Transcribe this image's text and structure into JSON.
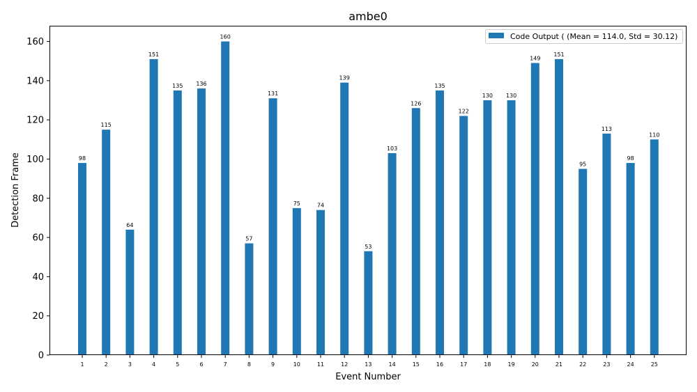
{
  "chart_data": {
    "type": "bar",
    "title": "ambe0",
    "xlabel": "Event Number",
    "ylabel": "Detection Frame",
    "categories": [
      "1",
      "2",
      "3",
      "4",
      "5",
      "6",
      "7",
      "8",
      "9",
      "10",
      "11",
      "12",
      "13",
      "14",
      "15",
      "16",
      "17",
      "18",
      "19",
      "20",
      "21",
      "22",
      "23",
      "24",
      "25"
    ],
    "series": [
      {
        "name": "Code Output ( (Mean = 114.0, Std = 30.12)",
        "color": "#1f77b4",
        "values": [
          98,
          115,
          64,
          151,
          135,
          136,
          160,
          57,
          131,
          75,
          74,
          139,
          53,
          103,
          126,
          135,
          122,
          130,
          130,
          149,
          151,
          95,
          113,
          98,
          110
        ]
      }
    ],
    "ylim": [
      0,
      168
    ],
    "yticks": [
      0,
      20,
      40,
      60,
      80,
      100,
      120,
      140,
      160
    ],
    "legend_position": "top-right",
    "grid": false,
    "data_labels": true
  }
}
